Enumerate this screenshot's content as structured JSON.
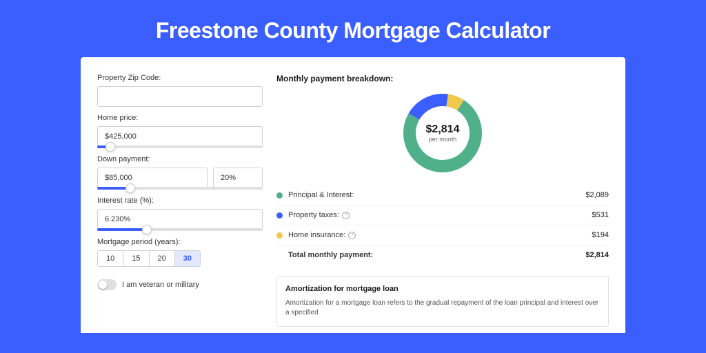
{
  "page": {
    "title": "Freestone County Mortgage Calculator",
    "background_color": "#3a5eff",
    "panel_background": "#ffffff"
  },
  "inputs": {
    "zip": {
      "label": "Property Zip Code:",
      "value": ""
    },
    "home_price": {
      "label": "Home price:",
      "value": "$425,000",
      "slider_pct": 8
    },
    "down_payment": {
      "label": "Down payment:",
      "value": "$85,000",
      "pct_value": "20%",
      "slider_pct": 20
    },
    "interest_rate": {
      "label": "Interest rate (%):",
      "value": "6.230%",
      "slider_pct": 30
    },
    "mortgage_period": {
      "label": "Mortgage period (years):",
      "options": [
        "10",
        "15",
        "20",
        "30"
      ],
      "selected": "30"
    },
    "veteran": {
      "label": "I am veteran or military",
      "checked": false
    }
  },
  "breakdown": {
    "title": "Monthly payment breakdown:",
    "center_value": "$2,814",
    "center_sub": "per month",
    "items": [
      {
        "label": "Principal & Interest:",
        "amount": "$2,089",
        "color": "#4fb08a",
        "info": false,
        "value": 2089
      },
      {
        "label": "Property taxes:",
        "amount": "$531",
        "color": "#3a5eff",
        "info": true,
        "value": 531
      },
      {
        "label": "Home insurance:",
        "amount": "$194",
        "color": "#f0c84c",
        "info": true,
        "value": 194
      }
    ],
    "total": {
      "label": "Total monthly payment:",
      "amount": "$2,814"
    },
    "donut": {
      "radius": 48,
      "stroke_width": 18,
      "total": 2814
    }
  },
  "amortization": {
    "title": "Amortization for mortgage loan",
    "text": "Amortization for a mortgage loan refers to the gradual repayment of the loan principal and interest over a specified"
  }
}
